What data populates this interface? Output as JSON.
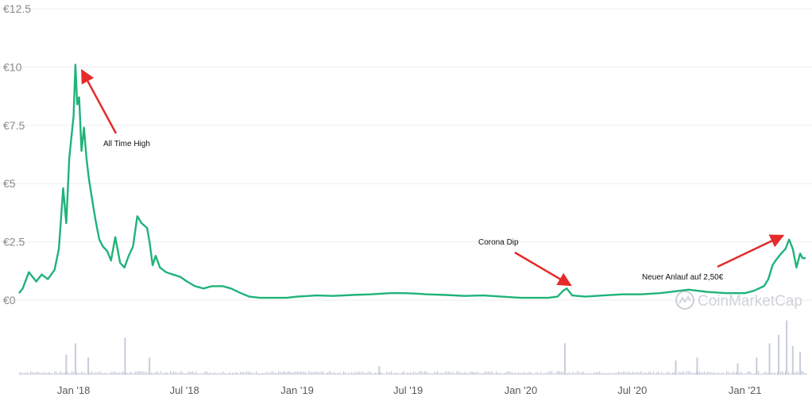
{
  "chart_data": {
    "type": "line",
    "y_ticks": [
      "€0",
      "€2.5",
      "€5",
      "€7.5",
      "€10",
      "€12.5"
    ],
    "y_tick_values": [
      0,
      2.5,
      5,
      7.5,
      10,
      12.5
    ],
    "ylim": [
      0,
      12.5
    ],
    "x_ticks": [
      "Jan '18",
      "Jul '18",
      "Jan '19",
      "Jul '19",
      "Jan '20",
      "Jul '20",
      "Jan '21"
    ],
    "x_tick_dates": [
      "2018-01-01",
      "2018-07-01",
      "2019-01-01",
      "2019-07-01",
      "2020-01-01",
      "2020-07-01",
      "2021-01-01"
    ],
    "xlim": [
      "2017-10-04",
      "2021-04-10"
    ],
    "grid": true,
    "colors": {
      "line": "#1fb37a",
      "volume": "#c7ccdb",
      "arrow": "#e52b2b",
      "grid": "#eeeeee"
    },
    "price_series": {
      "x": [
        "2017-10-04",
        "2017-10-10",
        "2017-10-20",
        "2017-11-01",
        "2017-11-10",
        "2017-11-20",
        "2017-12-01",
        "2017-12-08",
        "2017-12-15",
        "2017-12-20",
        "2017-12-25",
        "2018-01-01",
        "2018-01-04",
        "2018-01-07",
        "2018-01-10",
        "2018-01-14",
        "2018-01-18",
        "2018-01-22",
        "2018-01-26",
        "2018-02-01",
        "2018-02-06",
        "2018-02-12",
        "2018-02-18",
        "2018-02-25",
        "2018-03-03",
        "2018-03-10",
        "2018-03-18",
        "2018-03-25",
        "2018-04-01",
        "2018-04-08",
        "2018-04-15",
        "2018-04-22",
        "2018-05-01",
        "2018-05-05",
        "2018-05-10",
        "2018-05-15",
        "2018-05-22",
        "2018-06-01",
        "2018-06-12",
        "2018-06-24",
        "2018-07-05",
        "2018-07-18",
        "2018-08-01",
        "2018-08-15",
        "2018-09-01",
        "2018-09-15",
        "2018-10-01",
        "2018-10-15",
        "2018-11-01",
        "2018-11-15",
        "2018-12-01",
        "2018-12-15",
        "2019-01-01",
        "2019-02-01",
        "2019-03-01",
        "2019-04-01",
        "2019-05-01",
        "2019-06-01",
        "2019-06-25",
        "2019-07-15",
        "2019-08-01",
        "2019-09-01",
        "2019-10-01",
        "2019-11-01",
        "2019-12-01",
        "2020-01-01",
        "2020-02-01",
        "2020-02-15",
        "2020-03-01",
        "2020-03-10",
        "2020-03-16",
        "2020-03-25",
        "2020-04-15",
        "2020-05-15",
        "2020-06-15",
        "2020-07-15",
        "2020-08-15",
        "2020-09-01",
        "2020-09-15",
        "2020-10-01",
        "2020-11-01",
        "2020-12-01",
        "2020-12-15",
        "2021-01-01",
        "2021-01-15",
        "2021-02-01",
        "2021-02-08",
        "2021-02-15",
        "2021-02-20",
        "2021-03-01",
        "2021-03-08",
        "2021-03-14",
        "2021-03-20",
        "2021-03-26",
        "2021-04-01",
        "2021-04-05",
        "2021-04-10"
      ],
      "y": [
        0.3,
        0.5,
        1.2,
        0.8,
        1.1,
        0.9,
        1.3,
        2.2,
        4.8,
        3.3,
        6.1,
        7.9,
        10.1,
        8.4,
        8.7,
        6.4,
        7.4,
        6.1,
        5.2,
        4.2,
        3.4,
        2.6,
        2.3,
        2.1,
        1.7,
        2.7,
        1.6,
        1.4,
        1.9,
        2.3,
        3.6,
        3.3,
        3.1,
        2.5,
        1.5,
        1.9,
        1.4,
        1.2,
        1.1,
        1.0,
        0.8,
        0.6,
        0.5,
        0.6,
        0.6,
        0.5,
        0.3,
        0.15,
        0.1,
        0.1,
        0.1,
        0.1,
        0.15,
        0.2,
        0.18,
        0.22,
        0.25,
        0.3,
        0.3,
        0.28,
        0.25,
        0.22,
        0.18,
        0.2,
        0.15,
        0.1,
        0.1,
        0.1,
        0.15,
        0.4,
        0.5,
        0.2,
        0.15,
        0.2,
        0.25,
        0.25,
        0.3,
        0.35,
        0.4,
        0.45,
        0.35,
        0.3,
        0.3,
        0.3,
        0.4,
        0.6,
        0.9,
        1.5,
        1.7,
        2.0,
        2.2,
        2.6,
        2.2,
        1.4,
        2.0,
        1.8,
        1.8
      ],
      "axis_side": "right"
    },
    "volume_series": {
      "x": [
        "2017-12-20",
        "2018-01-04",
        "2018-01-25",
        "2018-03-26",
        "2018-05-05",
        "2019-05-15",
        "2020-03-13",
        "2020-09-10",
        "2020-10-15",
        "2020-12-20",
        "2021-01-20",
        "2021-02-10",
        "2021-02-25",
        "2021-03-10",
        "2021-03-20",
        "2021-04-01"
      ],
      "values": [
        0.35,
        0.55,
        0.3,
        0.65,
        0.3,
        0.15,
        0.55,
        0.25,
        0.3,
        0.2,
        0.3,
        0.55,
        0.7,
        0.95,
        0.5,
        0.4
      ],
      "baseline": 0.05
    },
    "annotations": [
      {
        "text": "All Time High",
        "points_to": {
          "x": "2018-01-04",
          "y": 10.1
        }
      },
      {
        "text": "Corona Dip",
        "points_to": {
          "x": "2020-03-16",
          "y": 0.5
        }
      },
      {
        "text": "Neuer Anlauf auf 2,50€",
        "points_to": {
          "x": "2021-03-08",
          "y": 2.6
        }
      }
    ],
    "watermark": "CoinMarketCap"
  }
}
